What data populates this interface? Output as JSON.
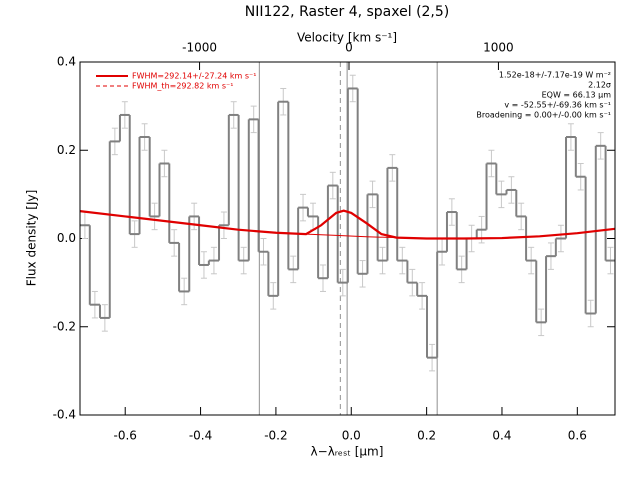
{
  "chart_data": {
    "type": "histogram",
    "title": "NII122, Raster 4, spaxel (2,5)",
    "xlabel": "λ−λᵣₑₛₜ [μm]",
    "ylabel": "Flux density [Jy]",
    "x2label": "Velocity [km s⁻¹]",
    "bins": [
      -0.72,
      -0.694,
      -0.667,
      -0.641,
      -0.614,
      -0.588,
      -0.562,
      -0.535,
      -0.509,
      -0.483,
      -0.457,
      -0.43,
      -0.404,
      -0.378,
      -0.351,
      -0.325,
      -0.299,
      -0.272,
      -0.246,
      -0.22,
      -0.194,
      -0.167,
      -0.141,
      -0.115,
      -0.088,
      -0.062,
      -0.036,
      -0.009,
      0.017,
      0.043,
      0.07,
      0.096,
      0.122,
      0.149,
      0.175,
      0.201,
      0.228,
      0.254,
      0.28,
      0.306,
      0.333,
      0.359,
      0.385,
      0.412,
      0.438,
      0.464,
      0.491,
      0.517,
      0.543,
      0.57,
      0.596,
      0.622,
      0.649,
      0.675,
      0.701
    ],
    "values": [
      0.03,
      -0.15,
      -0.18,
      0.22,
      0.28,
      0.01,
      0.23,
      0.05,
      0.17,
      -0.01,
      -0.12,
      0.05,
      -0.06,
      -0.05,
      0.03,
      0.28,
      -0.05,
      0.27,
      -0.03,
      -0.13,
      0.31,
      -0.07,
      0.07,
      0.05,
      -0.09,
      0.12,
      -0.1,
      0.34,
      -0.08,
      0.1,
      -0.05,
      0.16,
      -0.05,
      -0.1,
      -0.13,
      -0.27,
      -0.03,
      0.06,
      -0.07,
      0.0,
      0.02,
      0.17,
      0.1,
      0.11,
      0.05,
      -0.05,
      -0.19,
      -0.04,
      0.0,
      0.23,
      0.14,
      -0.17,
      0.21,
      -0.05
    ],
    "errors": [
      0.03,
      0.03,
      0.03,
      0.03,
      0.03,
      0.03,
      0.03,
      0.03,
      0.03,
      0.03,
      0.03,
      0.03,
      0.03,
      0.03,
      0.03,
      0.03,
      0.03,
      0.03,
      0.03,
      0.03,
      0.03,
      0.03,
      0.03,
      0.03,
      0.03,
      0.03,
      0.03,
      0.03,
      0.03,
      0.03,
      0.03,
      0.03,
      0.03,
      0.03,
      0.03,
      0.03,
      0.03,
      0.03,
      0.03,
      0.03,
      0.03,
      0.03,
      0.03,
      0.03,
      0.03,
      0.03,
      0.03,
      0.03,
      0.03,
      0.03,
      0.03,
      0.03,
      0.03,
      0.03
    ],
    "color": "#808080",
    "fit": {
      "name": "FWHM=292.14+/-27.24 km s⁻¹",
      "color": "#e00000",
      "x": [
        -0.72,
        -0.6,
        -0.4,
        -0.3,
        -0.2,
        -0.12,
        -0.08,
        -0.04,
        -0.02,
        0.0,
        0.04,
        0.08,
        0.12,
        0.2,
        0.3,
        0.4,
        0.5,
        0.6,
        0.7
      ],
      "values": [
        0.062,
        0.05,
        0.03,
        0.02,
        0.013,
        0.01,
        0.03,
        0.058,
        0.063,
        0.058,
        0.035,
        0.01,
        0.002,
        0.0,
        0.0,
        0.001,
        0.005,
        0.012,
        0.022
      ]
    },
    "baseline": {
      "x": [
        -0.12,
        -0.04,
        0.04,
        0.12
      ],
      "values": [
        0.01,
        0.007,
        0.004,
        0.002
      ]
    },
    "fit_th": {
      "name": "FWHM_th=292.82 km s⁻¹",
      "color": "#e00000"
    },
    "annotations": [
      "1.52e-18+/-7.17e-19 W m⁻²",
      "2.12σ",
      "EQW = 66.13 μm",
      "v = -52.55+/-69.36 km s⁻¹",
      "Broadening = 0.00+/-0.00 km s⁻¹"
    ],
    "vlines": [
      {
        "x": -0.244,
        "style": "solid"
      },
      {
        "x": 0.228,
        "style": "solid"
      },
      {
        "x": -0.011,
        "style": "solid"
      },
      {
        "x": -0.029,
        "style": "dashed"
      }
    ],
    "xlim": [
      -0.72,
      0.7
    ],
    "xticks": [
      -0.6,
      -0.4,
      -0.2,
      {
        "value": 0,
        "label": "0.0"
      },
      0.2,
      0.4,
      0.6
    ],
    "x2lim": [
      -1800,
      1780
    ],
    "x2ticks": [
      -1000,
      0,
      1000
    ],
    "ylim": [
      -0.4,
      0.4
    ],
    "yticks": [
      -0.4,
      -0.2,
      {
        "value": 0,
        "label": "0.0"
      },
      0.2,
      0.4
    ]
  }
}
